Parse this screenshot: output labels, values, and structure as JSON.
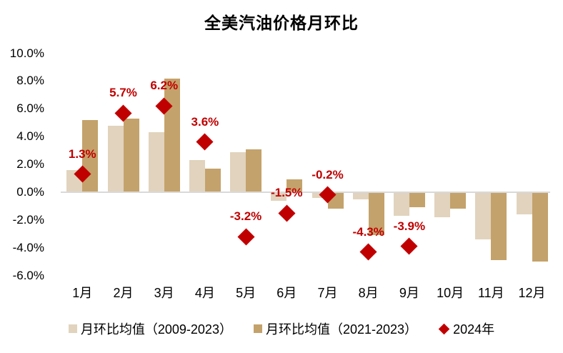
{
  "title": "全美汽油价格月环比",
  "colors": {
    "bar_light": "#e1d3bd",
    "bar_dark": "#c4a26b",
    "diamond_red": "#c00000",
    "axis_line": "#d9d9d9",
    "text": "#000000"
  },
  "chart_data": {
    "type": "bar",
    "title": "全美汽油价格月环比",
    "categories": [
      "1月",
      "2月",
      "3月",
      "4月",
      "5月",
      "6月",
      "7月",
      "8月",
      "9月",
      "10月",
      "11月",
      "12月"
    ],
    "series": [
      {
        "name": "月环比均值（2009-2023）",
        "type": "bar",
        "color": "#e1d3bd",
        "values": [
          1.6,
          4.8,
          4.3,
          2.3,
          2.9,
          -0.6,
          -0.4,
          -0.5,
          -1.7,
          -1.8,
          -3.4,
          -1.6
        ]
      },
      {
        "name": "月环比均值（2021-2023）",
        "type": "bar",
        "color": "#c4a26b",
        "values": [
          5.2,
          5.3,
          8.2,
          1.7,
          3.1,
          0.9,
          -1.2,
          -3.1,
          -1.1,
          -1.2,
          -4.9,
          -5.0
        ]
      },
      {
        "name": "2024年",
        "type": "scatter",
        "marker": "diamond",
        "color": "#c00000",
        "values": [
          1.3,
          5.7,
          6.2,
          3.6,
          -3.2,
          -1.5,
          -0.2,
          -4.3,
          -3.9,
          null,
          null,
          null
        ],
        "point_labels": [
          "1.3%",
          "5.7%",
          "6.2%",
          "3.6%",
          "-3.2%",
          "-1.5%",
          "-0.2%",
          "-4.3%",
          "-3.9%",
          "",
          "",
          ""
        ]
      }
    ],
    "xlabel": "",
    "ylabel": "",
    "ylim": [
      -6,
      10
    ],
    "ytick_step": 2,
    "ytick_labels": [
      "10.0%",
      "8.0%",
      "6.0%",
      "4.0%",
      "2.0%",
      "0.0%",
      "-2.0%",
      "-4.0%",
      "-6.0%"
    ],
    "grid": false,
    "legend_position": "bottom"
  }
}
